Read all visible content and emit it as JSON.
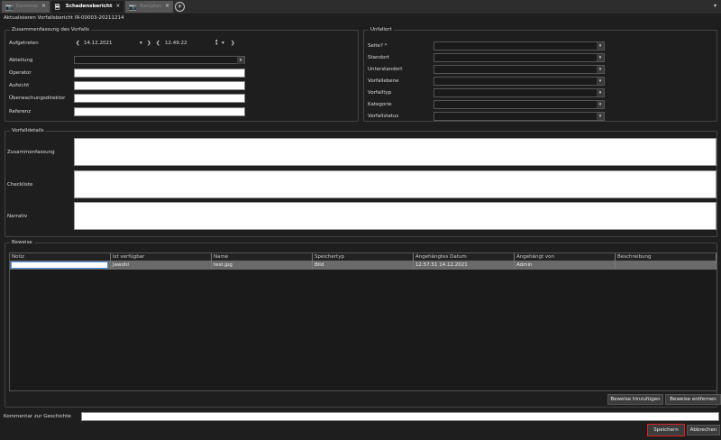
{
  "tabs": [
    {
      "label": "Kameras",
      "icon": "camera-icon"
    },
    {
      "label": "Schadensbericht",
      "icon": "document-icon"
    },
    {
      "label": "Kamplan",
      "icon": "camera-icon"
    }
  ],
  "title": "Aktualisieren Vorfallsbericht IR-00003-20211214",
  "summary": {
    "legend": "Zusammenfassung des Vorfalls",
    "occurred_label": "Aufgetreten",
    "date": "14.12.2021",
    "time": "12.49.22",
    "department_label": "Abteilung",
    "operator_label": "Operator",
    "supervision_label": "Aufsicht",
    "monitoring_director_label": "Überwachungsdirektor",
    "reference_label": "Referenz"
  },
  "location": {
    "legend": "Unfallort",
    "fields": [
      "Seite? *",
      "Standort",
      "Unterstandort",
      "Vorfallebene",
      "Vorfalltyp",
      "Kategorie",
      "Vorfallstatus"
    ]
  },
  "details": {
    "legend": "Vorfalldetails",
    "summary_label": "Zusammenfassung",
    "checklist_label": "Checkliste",
    "narrative_label": "Narrativ"
  },
  "evidence": {
    "legend": "Beweise",
    "columns": [
      "Notiz",
      "Ist verfügbar",
      "Name",
      "Speichertyp",
      "Angehängtes Datum",
      "Angehängt von",
      "Beschreibung"
    ],
    "rows": [
      [
        "",
        "Jawohl",
        "test.jpg",
        "Bild",
        "12.57.51  14.12.2021",
        "Admin",
        ""
      ]
    ],
    "add_label": "Beweise hinzufügen",
    "remove_label": "Beweise entfernen"
  },
  "comment_label": "Kommentar zur Geschichte",
  "save_label": "Speichern",
  "cancel_label": "Abbrechen",
  "colors": {
    "save_highlight": "#e02020"
  }
}
